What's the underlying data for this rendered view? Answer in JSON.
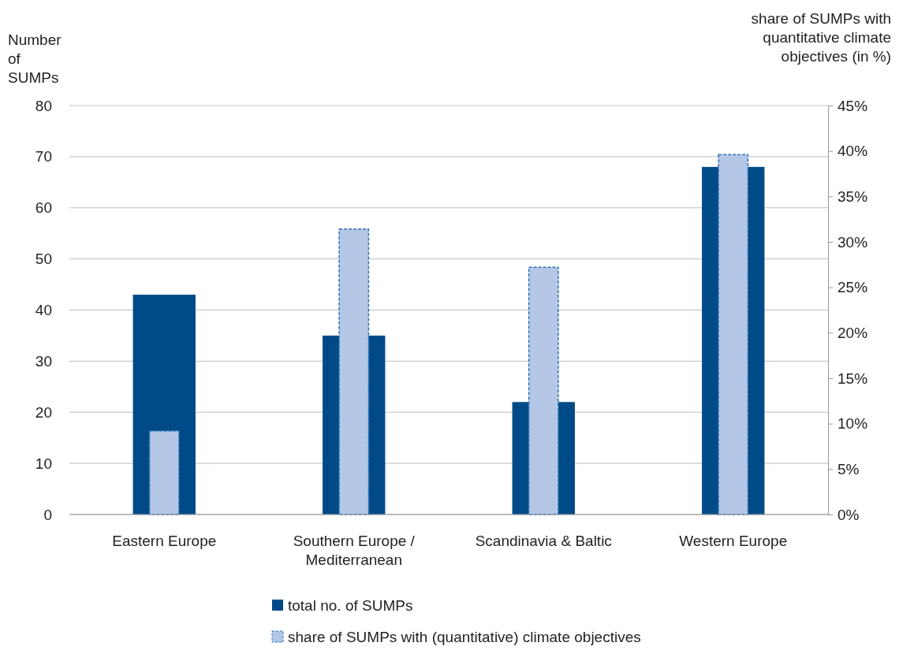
{
  "chart_data": {
    "type": "bar",
    "ylabel": "Number of SUMPs",
    "y2label": "share of SUMPs with quantitative climate objectives (in %)",
    "categories": [
      "Eastern Europe",
      "Southern Europe / Mediterranean",
      "Scandinavia & Baltic",
      "Western Europe"
    ],
    "series": [
      {
        "name": "total no. of SUMPs",
        "color": "#004b87",
        "values": [
          43,
          35,
          22,
          68
        ]
      },
      {
        "name": "share of SUMPs with (quantitative) climate objectives",
        "color": "#b4c7e7",
        "values": [
          9.2,
          31.4,
          27.2,
          39.6
        ],
        "axis": "y2",
        "line_style": "dashed"
      }
    ],
    "ylim": [
      0,
      80
    ],
    "yticks": [
      0,
      10,
      20,
      30,
      40,
      50,
      60,
      70,
      80
    ],
    "y2lim": [
      0,
      45
    ],
    "y2ticks": [
      {
        "value": 0,
        "label": "0%"
      },
      {
        "value": 5,
        "label": "5%"
      },
      {
        "value": 10,
        "label": "10%"
      },
      {
        "value": 15,
        "label": "15%"
      },
      {
        "value": 20,
        "label": "20%"
      },
      {
        "value": 25,
        "label": "25%"
      },
      {
        "value": 30,
        "label": "30%"
      },
      {
        "value": 35,
        "label": "35%"
      },
      {
        "value": 40,
        "label": "40%"
      },
      {
        "value": 45,
        "label": "45%"
      }
    ],
    "grid": "y",
    "legend": "bottom"
  }
}
